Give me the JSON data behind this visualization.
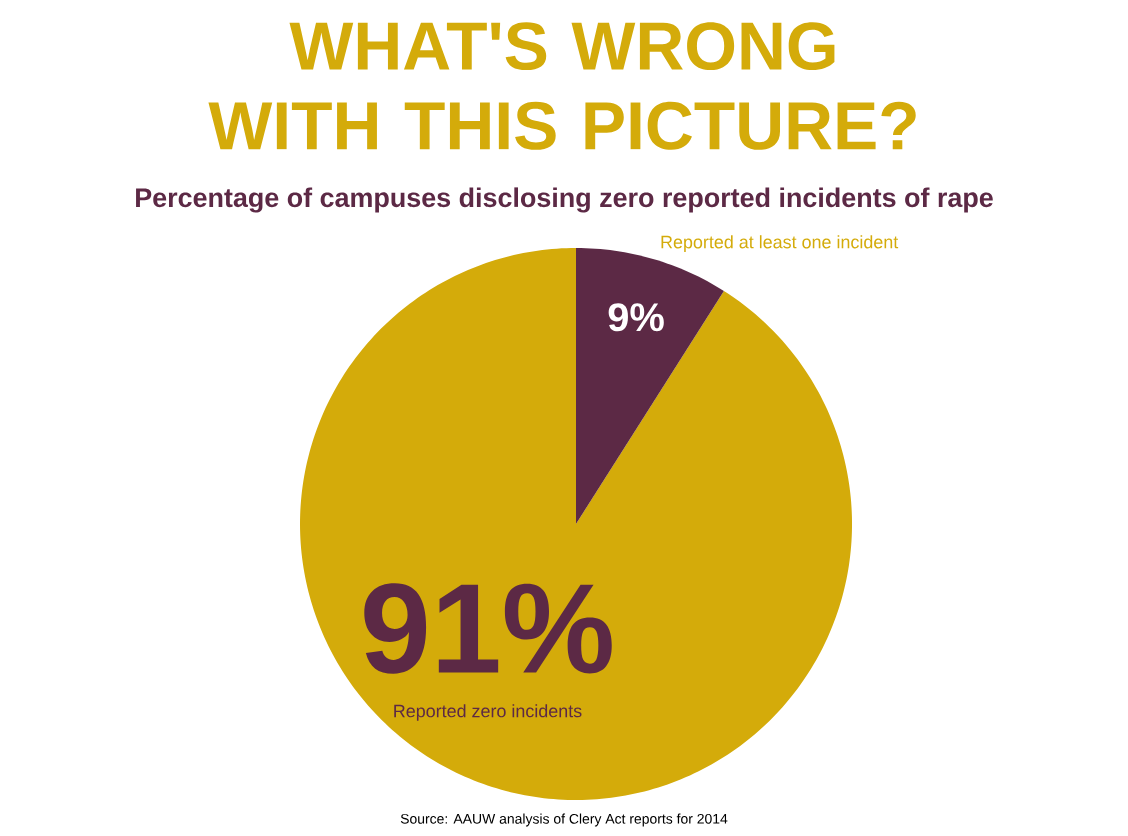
{
  "chart_data": {
    "type": "pie",
    "title": "WHAT'S WRONG WITH THIS PICTURE?",
    "subtitle": "Percentage of campuses disclosing zero reported incidents of rape",
    "categories": [
      "Reported zero incidents",
      "Reported at least one incident"
    ],
    "values": [
      91,
      9
    ],
    "colors": [
      "#d4ab0a",
      "#5c2945"
    ],
    "value_labels": [
      "91%",
      "9%"
    ],
    "annotations": [
      "Source: AAUW analysis of Clery Act reports for 2014"
    ]
  }
}
